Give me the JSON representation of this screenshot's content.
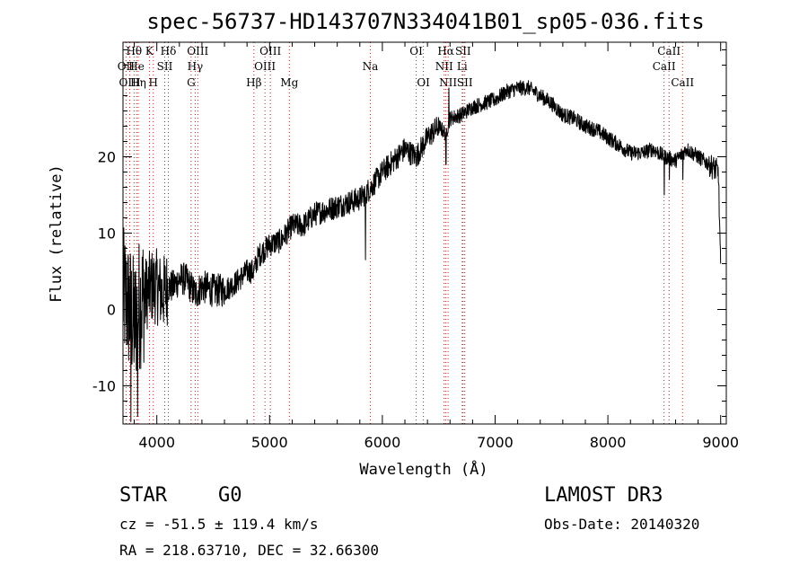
{
  "chart_data": {
    "type": "line",
    "title": "spec-56737-HD143707N334041B01_sp05-036.fits",
    "xlabel": "Wavelength (Å)",
    "ylabel": "Flux (relative)",
    "xlim": [
      3700,
      9050
    ],
    "ylim": [
      -15,
      35
    ],
    "xticks": [
      4000,
      5000,
      6000,
      7000,
      8000,
      9000
    ],
    "yticks": [
      -10,
      0,
      10,
      20
    ],
    "grid": false,
    "series": [
      {
        "name": "flux",
        "color": "#000000",
        "anchors": [
          [
            3700,
            2
          ],
          [
            3760,
            0
          ],
          [
            3800,
            -2
          ],
          [
            3850,
            1
          ],
          [
            3900,
            2
          ],
          [
            3950,
            3
          ],
          [
            4000,
            3
          ],
          [
            4050,
            2
          ],
          [
            4100,
            3
          ],
          [
            4150,
            3
          ],
          [
            4200,
            4
          ],
          [
            4250,
            4
          ],
          [
            4300,
            3
          ],
          [
            4340,
            2
          ],
          [
            4400,
            3
          ],
          [
            4500,
            2.5
          ],
          [
            4600,
            2.5
          ],
          [
            4700,
            3.5
          ],
          [
            4800,
            5
          ],
          [
            4860,
            5
          ],
          [
            4900,
            7
          ],
          [
            5000,
            8.5
          ],
          [
            5100,
            9
          ],
          [
            5200,
            11
          ],
          [
            5300,
            11
          ],
          [
            5400,
            12.5
          ],
          [
            5500,
            13
          ],
          [
            5600,
            13.5
          ],
          [
            5700,
            14
          ],
          [
            5800,
            14.5
          ],
          [
            5900,
            16
          ],
          [
            6000,
            18
          ],
          [
            6100,
            19.5
          ],
          [
            6200,
            21
          ],
          [
            6300,
            20
          ],
          [
            6400,
            22.5
          ],
          [
            6500,
            24
          ],
          [
            6563,
            23
          ],
          [
            6600,
            25
          ],
          [
            6700,
            25.5
          ],
          [
            6800,
            26.5
          ],
          [
            6900,
            27
          ],
          [
            7000,
            27.5
          ],
          [
            7100,
            28.5
          ],
          [
            7200,
            29
          ],
          [
            7300,
            29
          ],
          [
            7400,
            28
          ],
          [
            7500,
            27
          ],
          [
            7600,
            25.5
          ],
          [
            7700,
            25
          ],
          [
            7800,
            24
          ],
          [
            7900,
            23.5
          ],
          [
            8000,
            22.5
          ],
          [
            8100,
            21.5
          ],
          [
            8200,
            20.5
          ],
          [
            8300,
            20.5
          ],
          [
            8400,
            21
          ],
          [
            8500,
            20
          ],
          [
            8600,
            19.5
          ],
          [
            8700,
            21
          ],
          [
            8800,
            20
          ],
          [
            8900,
            19
          ],
          [
            8980,
            18
          ],
          [
            9000,
            5
          ]
        ],
        "features": [
          {
            "x": 3770,
            "y": -15
          },
          {
            "x": 3830,
            "y": -14
          },
          {
            "x": 5850,
            "y": 6.5
          },
          {
            "x": 6563,
            "y": 19
          },
          {
            "x": 6590,
            "y": 29
          },
          {
            "x": 8500,
            "y": 15
          },
          {
            "x": 8545,
            "y": 17
          },
          {
            "x": 8665,
            "y": 17
          },
          {
            "x": 9000,
            "y": 6
          }
        ]
      }
    ],
    "lines": [
      {
        "label": "Hθ",
        "x": 3798,
        "row": 0
      },
      {
        "label": "OII",
        "x": 3727,
        "row": 1
      },
      {
        "label": "OIII",
        "x": 3760,
        "row": 2
      },
      {
        "label": "He",
        "x": 3820,
        "row": 1
      },
      {
        "label": "Hη",
        "x": 3835,
        "row": 2
      },
      {
        "label": "K",
        "x": 3934,
        "row": 0
      },
      {
        "label": "H",
        "x": 3969,
        "row": 2
      },
      {
        "label": "SII",
        "x": 4070,
        "row": 1
      },
      {
        "label": "Hδ",
        "x": 4102,
        "row": 0
      },
      {
        "label": "OIII",
        "x": 4363,
        "row": 0
      },
      {
        "label": "Hγ",
        "x": 4340,
        "row": 1
      },
      {
        "label": "G",
        "x": 4304,
        "row": 2
      },
      {
        "label": "Hβ",
        "x": 4861,
        "row": 2
      },
      {
        "label": "OIII",
        "x": 5007,
        "row": 0
      },
      {
        "label": "OIII",
        "x": 4959,
        "row": 1
      },
      {
        "label": "Mg",
        "x": 5175,
        "row": 2
      },
      {
        "label": "Na",
        "x": 5893,
        "row": 1
      },
      {
        "label": "OI",
        "x": 6300,
        "row": 0
      },
      {
        "label": "OI",
        "x": 6364,
        "row": 2
      },
      {
        "label": "Hα",
        "x": 6563,
        "row": 0
      },
      {
        "label": "SII",
        "x": 6716,
        "row": 0
      },
      {
        "label": "NII",
        "x": 6548,
        "row": 1
      },
      {
        "label": "Li",
        "x": 6708,
        "row": 1
      },
      {
        "label": "NII",
        "x": 6583,
        "row": 2
      },
      {
        "label": "SII",
        "x": 6731,
        "row": 2
      },
      {
        "label": "CaII",
        "x": 8542,
        "row": 0
      },
      {
        "label": "CaII",
        "x": 8498,
        "row": 1
      },
      {
        "label": "CaII",
        "x": 8662,
        "row": 2
      }
    ]
  },
  "info": {
    "object_class": "STAR",
    "subclass": "G0",
    "survey": "LAMOST DR3",
    "cz": "cz = -51.5 ± 119.4 km/s",
    "obs_date": "Obs-Date: 20140320",
    "coords": "RA = 218.63710, DEC =  32.66300"
  }
}
